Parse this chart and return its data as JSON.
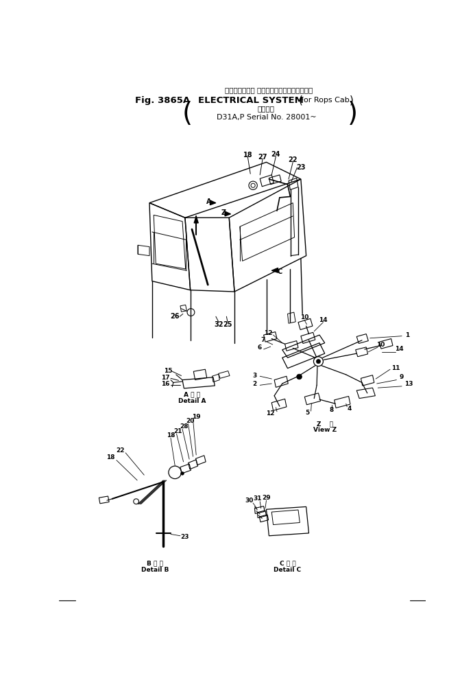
{
  "bg_color": "#ffffff",
  "line_color": "#000000",
  "fig_width": 6.9,
  "fig_height": 9.88,
  "dpi": 100,
  "title_jp": "エレクトリカル システム（ロプスキャブ用）",
  "title_en1": "Fig. 3865A",
  "title_en2": "ELECTRICAL SYSTEM",
  "title_en3": "For Rops Cab",
  "title_jp2": "適用号機",
  "title_serial": "D31A,P Serial No. 28001~",
  "detail_a_jp": "A 詳 細",
  "detail_a_en": "Detail A",
  "detail_b_jp": "B 詳 細",
  "detail_b_en": "Detail B",
  "detail_c_jp": "C 詳 細",
  "detail_c_en": "Detail C",
  "view_z_jp": "Z  樺",
  "view_z_en": "View Z"
}
